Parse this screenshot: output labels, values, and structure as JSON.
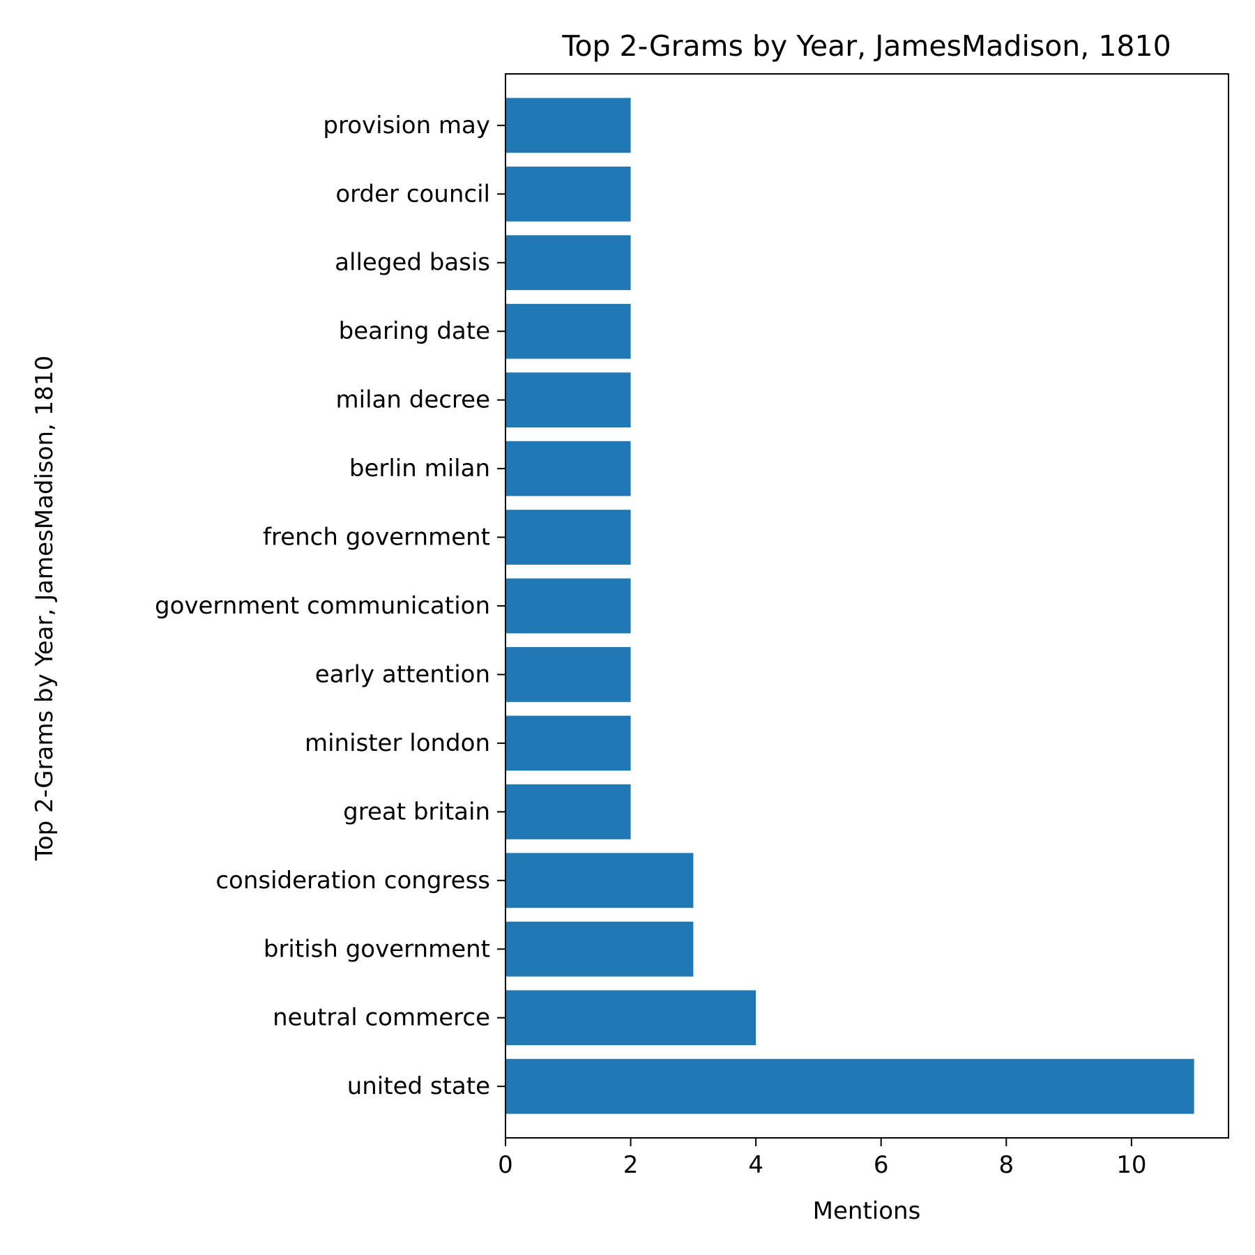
{
  "chart_data": {
    "type": "bar",
    "orientation": "horizontal",
    "title": "Top 2-Grams by Year, JamesMadison, 1810",
    "xlabel": "Mentions",
    "ylabel": "Top 2-Grams by Year, JamesMadison, 1810",
    "categories": [
      "united state",
      "neutral commerce",
      "british government",
      "consideration congress",
      "great britain",
      "minister london",
      "early attention",
      "government communication",
      "french government",
      "berlin milan",
      "milan decree",
      "bearing date",
      "alleged basis",
      "order council",
      "provision may"
    ],
    "values": [
      11,
      4,
      3,
      3,
      2,
      2,
      2,
      2,
      2,
      2,
      2,
      2,
      2,
      2,
      2
    ],
    "xlim": [
      0,
      11.55
    ],
    "xticks": [
      0,
      2,
      4,
      6,
      8,
      10
    ],
    "bar_color": "#1f77b4",
    "grid": false,
    "legend": "none"
  }
}
